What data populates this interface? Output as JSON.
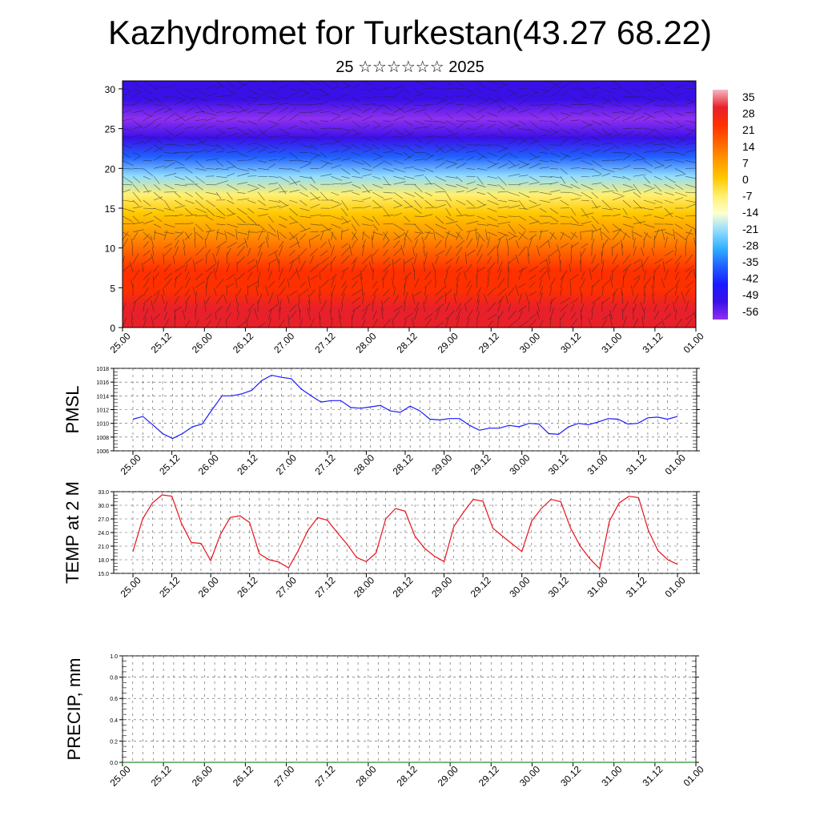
{
  "title": "Kazhydromet for Turkestan(43.27 68.22)",
  "subtitle": "25 ☆☆☆☆☆☆ 2025",
  "chart_data": [
    {
      "type": "heatmap",
      "description_ylim": [
        0,
        31
      ],
      "ylim": [
        0,
        31
      ],
      "yticks": [
        "0",
        "5",
        "10",
        "15",
        "20",
        "25",
        "30"
      ],
      "xticks": [
        "25.00",
        "25.12",
        "26.00",
        "26.12",
        "27.00",
        "27.12",
        "28.00",
        "28.12",
        "29.00",
        "29.12",
        "30.00",
        "30.12",
        "31.00",
        "31.12",
        "01.00"
      ],
      "colorbar": {
        "labels": [
          "35",
          "28",
          "21",
          "14",
          "7",
          "0",
          "-7",
          "-14",
          "-21",
          "-28",
          "-35",
          "-42",
          "-49",
          "-56"
        ],
        "colors": [
          "#f6b7c4",
          "#e8202a",
          "#ff3000",
          "#ff6400",
          "#ff9a00",
          "#ffc800",
          "#fff070",
          "#ffffd0",
          "#8fdcff",
          "#2fb0ff",
          "#2060ff",
          "#1a1aff",
          "#3a10e8",
          "#9030f0"
        ]
      },
      "levels": {
        "temps_by_level": [
          30,
          28,
          24,
          18,
          12,
          6,
          0,
          -10,
          -20,
          -35,
          -50,
          -56,
          -52,
          -46
        ]
      }
    },
    {
      "type": "line",
      "ylabel": "PMSL",
      "ylim": [
        1006,
        1018
      ],
      "yticks": [
        "1006",
        "1008",
        "1010",
        "1012",
        "1014",
        "1016",
        "1018"
      ],
      "xticks": [
        "25.00",
        "25.12",
        "26.00",
        "26.12",
        "27.00",
        "27.12",
        "28.00",
        "28.12",
        "29.00",
        "29.12",
        "30.00",
        "30.12",
        "31.00",
        "31.12",
        "01.00"
      ],
      "color": "#1a1aff",
      "values": [
        1010.6,
        1011.0,
        1009.8,
        1008.5,
        1007.8,
        1008.5,
        1009.5,
        1009.9,
        1012.0,
        1014.0,
        1014.0,
        1014.3,
        1014.8,
        1016.2,
        1017.0,
        1016.7,
        1016.5,
        1015.0,
        1014.0,
        1013.1,
        1013.3,
        1013.3,
        1012.3,
        1012.2,
        1012.4,
        1012.6,
        1011.8,
        1011.6,
        1012.5,
        1011.8,
        1010.6,
        1010.5,
        1010.7,
        1010.7,
        1009.7,
        1009.0,
        1009.3,
        1009.3,
        1009.7,
        1009.5,
        1010.0,
        1009.9,
        1008.5,
        1008.4,
        1009.5,
        1010.0,
        1009.8,
        1010.2,
        1010.7,
        1010.6,
        1009.9,
        1010.0,
        1010.8,
        1010.9,
        1010.6,
        1011.0
      ]
    },
    {
      "type": "line",
      "ylabel": "TEMP at 2 M",
      "ylim": [
        15,
        33
      ],
      "yticks": [
        "15.0",
        "18.0",
        "21.0",
        "24.0",
        "27.0",
        "30.0",
        "33.0"
      ],
      "xticks": [
        "25.00",
        "25.12",
        "26.00",
        "26.12",
        "27.00",
        "27.12",
        "28.00",
        "28.12",
        "29.00",
        "29.12",
        "30.00",
        "30.12",
        "31.00",
        "31.12",
        "01.00"
      ],
      "color": "#e8101a",
      "values": [
        19.8,
        27.0,
        30.5,
        32.3,
        32.0,
        26.0,
        21.8,
        21.6,
        17.8,
        23.6,
        27.3,
        27.7,
        26.2,
        19.3,
        18.0,
        17.5,
        16.2,
        20.0,
        24.5,
        27.3,
        26.7,
        24.0,
        21.5,
        18.5,
        17.6,
        19.5,
        27.0,
        29.3,
        28.7,
        23.2,
        20.5,
        18.8,
        17.6,
        25.3,
        28.5,
        31.3,
        30.9,
        25.0,
        23.2,
        21.5,
        19.8,
        26.5,
        29.3,
        31.3,
        30.8,
        25.0,
        21.0,
        18.2,
        16.0,
        26.5,
        30.5,
        32.0,
        31.7,
        24.5,
        20.0,
        18.0,
        17.0
      ]
    },
    {
      "type": "line",
      "ylabel": "PRECIP, mm",
      "ylim": [
        0,
        1
      ],
      "yticks": [
        "0.0",
        "0.2",
        "0.4",
        "0.6",
        "0.8",
        "1.0"
      ],
      "xticks": [
        "25.00",
        "25.12",
        "26.00",
        "26.12",
        "27.00",
        "27.12",
        "28.00",
        "28.12",
        "29.00",
        "29.12",
        "30.00",
        "30.12",
        "31.00",
        "31.12",
        "01.00"
      ],
      "color": "#2a8a2a",
      "values": [
        0,
        0,
        0,
        0,
        0,
        0,
        0,
        0,
        0,
        0,
        0,
        0,
        0,
        0,
        0,
        0,
        0,
        0,
        0,
        0,
        0,
        0,
        0,
        0,
        0,
        0,
        0,
        0,
        0,
        0,
        0,
        0,
        0,
        0,
        0,
        0,
        0,
        0,
        0,
        0,
        0,
        0,
        0,
        0,
        0,
        0,
        0,
        0,
        0,
        0,
        0,
        0,
        0,
        0,
        0,
        0,
        0
      ]
    }
  ]
}
